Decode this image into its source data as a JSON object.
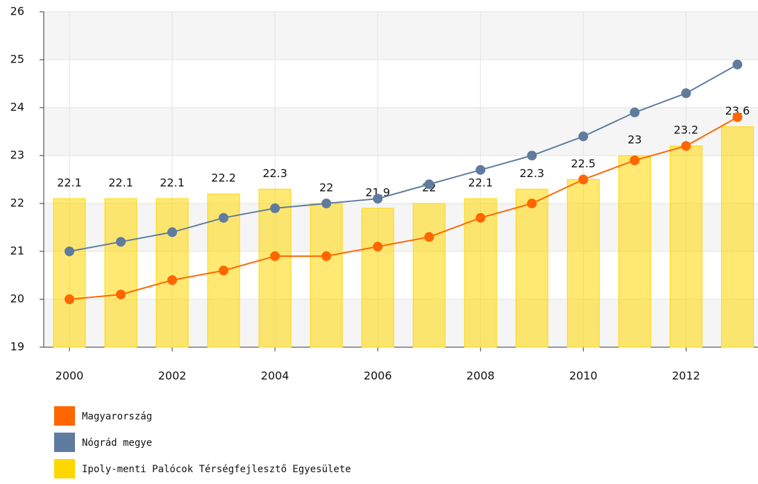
{
  "chart_data": {
    "type": "bar-line",
    "x": [
      2000,
      2001,
      2002,
      2003,
      2004,
      2005,
      2006,
      2007,
      2008,
      2009,
      2010,
      2011,
      2012,
      2013
    ],
    "xlim": [
      1999.5,
      2013.4
    ],
    "xticks": [
      2000,
      2002,
      2004,
      2006,
      2008,
      2010,
      2012
    ],
    "ylim": [
      19,
      26
    ],
    "yticks": [
      19,
      20,
      21,
      22,
      23,
      24,
      25,
      26
    ],
    "grid": true,
    "series": [
      {
        "name": "Magyarország",
        "type": "line",
        "color": "#ff6600",
        "values": [
          20.0,
          20.1,
          20.4,
          20.6,
          20.9,
          20.9,
          21.1,
          21.3,
          21.7,
          22.0,
          22.5,
          22.9,
          23.2,
          23.8
        ]
      },
      {
        "name": "Nógrád megye",
        "type": "line",
        "color": "#5f7b9e",
        "values": [
          21.0,
          21.2,
          21.4,
          21.7,
          21.9,
          22.0,
          22.1,
          22.4,
          22.7,
          23.0,
          23.4,
          23.9,
          24.3,
          24.9
        ]
      },
      {
        "name": "Ipoly-menti Palócok Térségfejlesztő Egyesülete",
        "type": "bar",
        "color": "#ffd700",
        "values": [
          22.1,
          22.1,
          22.1,
          22.2,
          22.3,
          22,
          21.9,
          22,
          22.1,
          22.3,
          22.5,
          23,
          23.2,
          23.6
        ]
      }
    ]
  }
}
